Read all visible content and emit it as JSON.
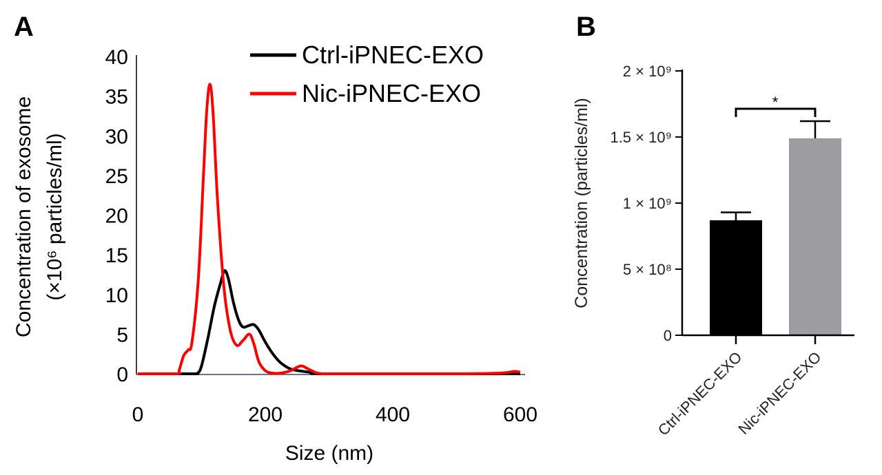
{
  "chart_data": [
    {
      "panel_label": "A",
      "type": "line",
      "xlabel": "Size (nm)",
      "ylabel_line1": "Concentration of exosome",
      "ylabel_line2": "(×10⁶ particles/ml)",
      "xlim": [
        0,
        600
      ],
      "ylim": [
        0,
        40
      ],
      "xticks": [
        0,
        200,
        400,
        600
      ],
      "yticks": [
        0,
        5,
        10,
        15,
        20,
        25,
        30,
        35,
        40
      ],
      "grid": false,
      "legend_position": "top-right",
      "series": [
        {
          "name": "Ctrl-iPNEC-EXO",
          "color": "#000000",
          "x": [
            0,
            85,
            94,
            100,
            110,
            120,
            130,
            136,
            142,
            150,
            158,
            165,
            175,
            182,
            190,
            200,
            212,
            224,
            240,
            260,
            280,
            300,
            600
          ],
          "y": [
            0,
            0,
            0.1,
            1,
            4.5,
            8.5,
            11.5,
            13.0,
            12,
            9,
            6.8,
            5.9,
            6.1,
            6.2,
            5.5,
            4,
            2.5,
            1.4,
            0.6,
            0.3,
            0.1,
            0,
            0
          ]
        },
        {
          "name": "Nic-iPNEC-EXO",
          "color": "#ff0000",
          "x": [
            0,
            60,
            65,
            72,
            79,
            85,
            95,
            103,
            108,
            113,
            118,
            125,
            135,
            145,
            155,
            165,
            175,
            182,
            190,
            200,
            210,
            225,
            240,
            256,
            270,
            290,
            350,
            500,
            570,
            590,
            600
          ],
          "y": [
            0,
            0,
            0.5,
            2.3,
            3.0,
            4.0,
            12,
            25,
            33,
            36.5,
            33,
            22,
            11,
            5.5,
            3.6,
            4.2,
            5.0,
            3.8,
            1.5,
            0.4,
            0.1,
            0.1,
            0.4,
            1.0,
            0.5,
            0,
            0,
            0,
            0.1,
            0.3,
            0.2
          ]
        }
      ]
    },
    {
      "panel_label": "B",
      "type": "bar",
      "ylabel": "Concentration (particles/ml)",
      "categories": [
        "Ctrl-iPNEC-EXO",
        "Nic-iPNEC-EXO"
      ],
      "values": [
        870000000,
        1490000000
      ],
      "error_upper": [
        930000000,
        1620000000
      ],
      "colors": [
        "#000000",
        "#9d9da1"
      ],
      "ylim": [
        0,
        2000000000
      ],
      "yticks": [
        0,
        500000000,
        1000000000,
        1500000000,
        2000000000
      ],
      "ytick_labels": [
        "0",
        "5 × 10⁸",
        "1 × 10⁹",
        "1.5 × 10⁹",
        "2 × 10⁹"
      ],
      "significance": "*",
      "grid": false
    }
  ]
}
